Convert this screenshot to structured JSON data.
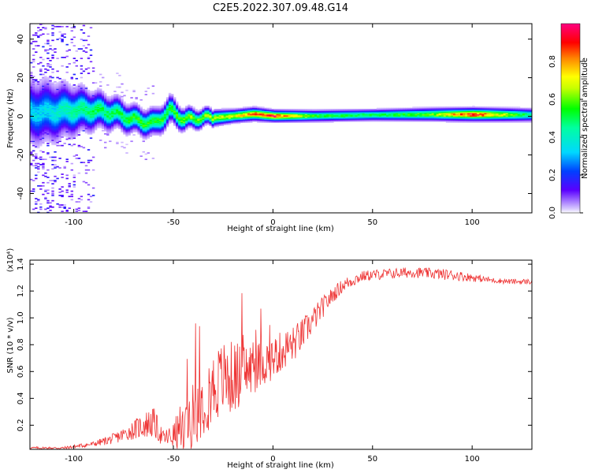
{
  "title": "C2E5.2022.307.09.48.G14",
  "chart_data": [
    {
      "type": "heatmap",
      "xlabel": "Height of straight line (km)",
      "ylabel": "Frequency (Hz)",
      "xlim": [
        -122,
        130
      ],
      "ylim": [
        -50,
        48
      ],
      "xticks": [
        -100,
        -50,
        0,
        50,
        100
      ],
      "xtick_labels": [
        "-100",
        "-50",
        "0",
        "50",
        "100"
      ],
      "yticks": [
        -40,
        -20,
        0,
        20,
        40
      ],
      "ytick_labels": [
        "-40",
        "-20",
        "0",
        "20",
        "40"
      ],
      "colorbar": {
        "label": "Normalized spectral amplitude",
        "range": [
          0.0,
          1.0
        ],
        "ticks": [
          0.0,
          0.2,
          0.4,
          0.6,
          0.8
        ],
        "tick_labels": [
          "0.0",
          "0.2",
          "0.4",
          "0.6",
          "0.8"
        ],
        "colormap": [
          "#ffffff",
          "#3a00ff",
          "#00d8ff",
          "#00ff00",
          "#ffff00",
          "#ff0000",
          "#ff007a"
        ]
      },
      "ridge": {
        "x": [
          -115,
          -100,
          -90,
          -80,
          -70,
          -60,
          -52,
          -45,
          -38,
          -30,
          -20,
          -10,
          0,
          20,
          50,
          80,
          100,
          130
        ],
        "freq": [
          2,
          3,
          3,
          1.5,
          -2,
          -4,
          3,
          -2,
          -1,
          -1,
          0,
          1,
          0,
          0,
          0.5,
          0.8,
          0.8,
          0.5
        ],
        "width": [
          12,
          9,
          7,
          6,
          5,
          5,
          5,
          4,
          3.5,
          3,
          2.5,
          2.5,
          2.2,
          2.2,
          2.2,
          2.5,
          2.5,
          2.5
        ],
        "peak": [
          0.35,
          0.45,
          0.5,
          0.5,
          0.55,
          0.55,
          0.55,
          0.6,
          0.6,
          0.65,
          0.7,
          0.82,
          0.9,
          0.55,
          0.5,
          0.6,
          0.9,
          0.45
        ]
      },
      "grid": false
    },
    {
      "type": "line",
      "xlabel": "Height of straight line (km)",
      "ylabel": "SNR (10 * v/v)",
      "y_multiplier": "(x10⁴)",
      "xlim": [
        -122,
        130
      ],
      "ylim": [
        0.02,
        1.43
      ],
      "xticks": [
        -100,
        -50,
        0,
        50,
        100
      ],
      "xtick_labels": [
        "-100",
        "-50",
        "0",
        "50",
        "100"
      ],
      "yticks": [
        0.2,
        0.4,
        0.6,
        0.8,
        1.0,
        1.2,
        1.4
      ],
      "ytick_labels": [
        "0.2",
        "0.4",
        "0.6",
        "0.8",
        "1.0",
        "1.2",
        "1.4"
      ],
      "color": "#ee3333",
      "series": [
        {
          "x": [
            -122,
            -105,
            -90,
            -80,
            -72,
            -65,
            -60,
            -55,
            -50,
            -45,
            -40,
            -35,
            -30,
            -25,
            -20,
            -15,
            -10,
            -5,
            0,
            5,
            10,
            15,
            20,
            25,
            30,
            35,
            40,
            45,
            50,
            60,
            70,
            80,
            90,
            100,
            110,
            120,
            130
          ],
          "values": [
            0.03,
            0.03,
            0.06,
            0.1,
            0.15,
            0.2,
            0.22,
            0.1,
            0.12,
            0.18,
            0.28,
            0.38,
            0.48,
            0.55,
            0.55,
            0.6,
            0.62,
            0.66,
            0.7,
            0.76,
            0.8,
            0.88,
            0.98,
            1.08,
            1.17,
            1.24,
            1.28,
            1.31,
            1.32,
            1.33,
            1.34,
            1.33,
            1.32,
            1.3,
            1.28,
            1.27,
            1.27
          ],
          "noise": [
            0.01,
            0.01,
            0.02,
            0.04,
            0.06,
            0.1,
            0.12,
            0.06,
            0.1,
            0.22,
            0.24,
            0.26,
            0.28,
            0.28,
            0.28,
            0.22,
            0.2,
            0.17,
            0.16,
            0.15,
            0.14,
            0.12,
            0.1,
            0.08,
            0.06,
            0.05,
            0.05,
            0.04,
            0.04,
            0.04,
            0.04,
            0.04,
            0.04,
            0.03,
            0.02,
            0.02,
            0.02
          ]
        }
      ],
      "grid": false
    }
  ]
}
